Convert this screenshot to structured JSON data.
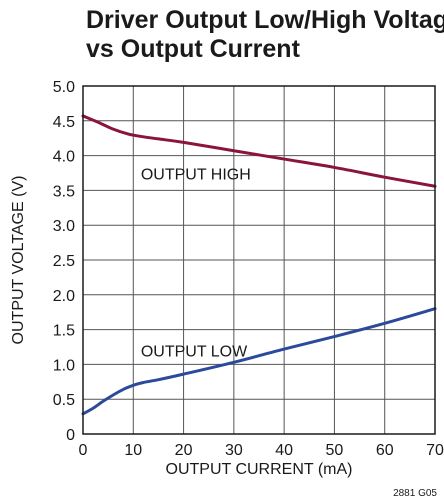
{
  "chart_data": {
    "type": "line",
    "title_line1": "Driver Output Low/High Voltage",
    "title_line2": "vs Output Current",
    "xlabel": "OUTPUT CURRENT (mA)",
    "ylabel": "OUTPUT VOLTAGE (V)",
    "xlim": [
      0,
      70
    ],
    "ylim": [
      0,
      5.0
    ],
    "xticks": [
      "0",
      "10",
      "20",
      "30",
      "40",
      "50",
      "60",
      "70"
    ],
    "yticks": [
      "0",
      "0.5",
      "1.0",
      "1.5",
      "2.0",
      "2.5",
      "3.0",
      "3.5",
      "4.0",
      "4.5",
      "5.0"
    ],
    "grid": true,
    "annotations": [
      "OUTPUT HIGH",
      "OUTPUT LOW"
    ],
    "figure_code": "2881 G05",
    "series": [
      {
        "color": "#8b1538",
        "x": [
          0,
          3,
          6,
          9,
          12,
          15,
          20,
          30,
          40,
          50,
          60,
          70
        ],
        "y": [
          4.57,
          4.48,
          4.38,
          4.31,
          4.27,
          4.24,
          4.19,
          4.07,
          3.95,
          3.83,
          3.69,
          3.56
        ]
      },
      {
        "color": "#2b4a9c",
        "x": [
          0,
          2,
          4,
          6,
          8,
          10,
          12,
          15,
          20,
          30,
          40,
          50,
          60,
          70
        ],
        "y": [
          0.29,
          0.37,
          0.47,
          0.56,
          0.64,
          0.7,
          0.74,
          0.78,
          0.86,
          1.03,
          1.22,
          1.4,
          1.59,
          1.8
        ]
      }
    ]
  }
}
